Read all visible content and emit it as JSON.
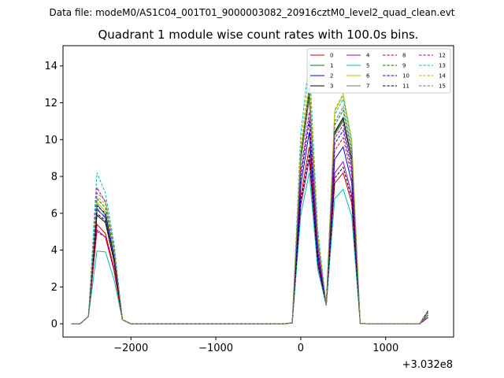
{
  "figure": {
    "suptitle": "Data file: modeM0/AS1C04_001T01_9000003082_20916cztM0_level2_quad_clean.evt"
  },
  "chart_data": {
    "type": "line",
    "title": "Quadrant 1 module wise count rates with 100.0s bins.",
    "xlabel": "",
    "ylabel": "",
    "x_offset_label": "+3.032e8",
    "xlim": [
      -2800,
      1800
    ],
    "ylim": [
      -0.72,
      15.1
    ],
    "xticks": [
      -2000,
      -1000,
      0,
      1000
    ],
    "xtick_labels": [
      "−2000",
      "−1000",
      "0",
      "1000"
    ],
    "yticks": [
      0,
      2,
      4,
      6,
      8,
      10,
      12,
      14
    ],
    "ytick_labels": [
      "0",
      "2",
      "4",
      "6",
      "8",
      "10",
      "12",
      "14"
    ],
    "grid": false,
    "legend_position": "top-right",
    "x": [
      -2700,
      -2600,
      -2500,
      -2400,
      -2300,
      -2200,
      -2100,
      -2000,
      -1900,
      -1800,
      -1700,
      -1600,
      -1500,
      -1400,
      -1300,
      -1200,
      -1100,
      -1000,
      -900,
      -800,
      -700,
      -600,
      -500,
      -400,
      -300,
      -200,
      -100,
      0,
      100,
      200,
      300,
      400,
      500,
      600,
      700,
      800,
      900,
      1000,
      1100,
      1200,
      1300,
      1400,
      1500,
      1600
    ],
    "series": [
      {
        "name": "0",
        "color": "#cc0000",
        "dash": false,
        "base": [
          5.4,
          4.9,
          9.6,
          8.2
        ]
      },
      {
        "name": "1",
        "color": "#007700",
        "dash": false,
        "base": [
          6.5,
          5.9,
          12.4,
          11.1
        ]
      },
      {
        "name": "2",
        "color": "#0000dd",
        "dash": false,
        "base": [
          6.2,
          5.8,
          10.4,
          9.6
        ]
      },
      {
        "name": "3",
        "color": "#000000",
        "dash": false,
        "base": [
          5.9,
          5.5,
          12.6,
          11.2
        ]
      },
      {
        "name": "4",
        "color": "#aa00aa",
        "dash": false,
        "base": [
          5.1,
          4.7,
          8.9,
          8.8
        ]
      },
      {
        "name": "5",
        "color": "#00bbbb",
        "dash": false,
        "base": [
          3.95,
          3.9,
          8.2,
          7.3
        ]
      },
      {
        "name": "6",
        "color": "#bbbb00",
        "dash": false,
        "base": [
          6.6,
          6.1,
          12.9,
          12.4
        ]
      },
      {
        "name": "7",
        "color": "#777777",
        "dash": false,
        "base": [
          6.3,
          5.7,
          12.2,
          11.0
        ]
      },
      {
        "name": "8",
        "color": "#cc0000",
        "dash": true,
        "base": [
          5.0,
          4.7,
          11.1,
          10.1
        ]
      },
      {
        "name": "9",
        "color": "#007700",
        "dash": true,
        "base": [
          6.8,
          6.3,
          12.8,
          11.6
        ]
      },
      {
        "name": "10",
        "color": "#0000dd",
        "dash": true,
        "base": [
          6.4,
          6.0,
          11.0,
          10.5
        ]
      },
      {
        "name": "11",
        "color": "#000000",
        "dash": true,
        "base": [
          6.0,
          5.6,
          9.2,
          8.5
        ]
      },
      {
        "name": "12",
        "color": "#aa00aa",
        "dash": true,
        "base": [
          7.4,
          6.6,
          11.5,
          10.8
        ]
      },
      {
        "name": "13",
        "color": "#00bbbb",
        "dash": true,
        "base": [
          8.2,
          7.1,
          14.3,
          12.2
        ]
      },
      {
        "name": "14",
        "color": "#bbbb00",
        "dash": true,
        "base": [
          6.9,
          6.5,
          13.5,
          12.5
        ]
      },
      {
        "name": "15",
        "color": "#777777",
        "dash": true,
        "base": [
          7.1,
          6.7,
          12.6,
          11.8
        ]
      }
    ],
    "profile": {
      "seg1_start": [
        0,
        0,
        0.4
      ],
      "seg1_shape": [
        1.0,
        0.96,
        0.62,
        0.22,
        0.0
      ],
      "gap_zero_to": 200,
      "seg2_start": [
        200,
        0.05
      ],
      "seg2_shape": [
        0.55,
        1.0,
        0.38,
        0.15,
        0.0
      ],
      "seg3_shape": [
        0.65,
        1.0,
        0.83,
        0.55,
        0.0
      ],
      "tail": [
        0,
        0,
        0,
        0,
        0.35
      ]
    }
  }
}
